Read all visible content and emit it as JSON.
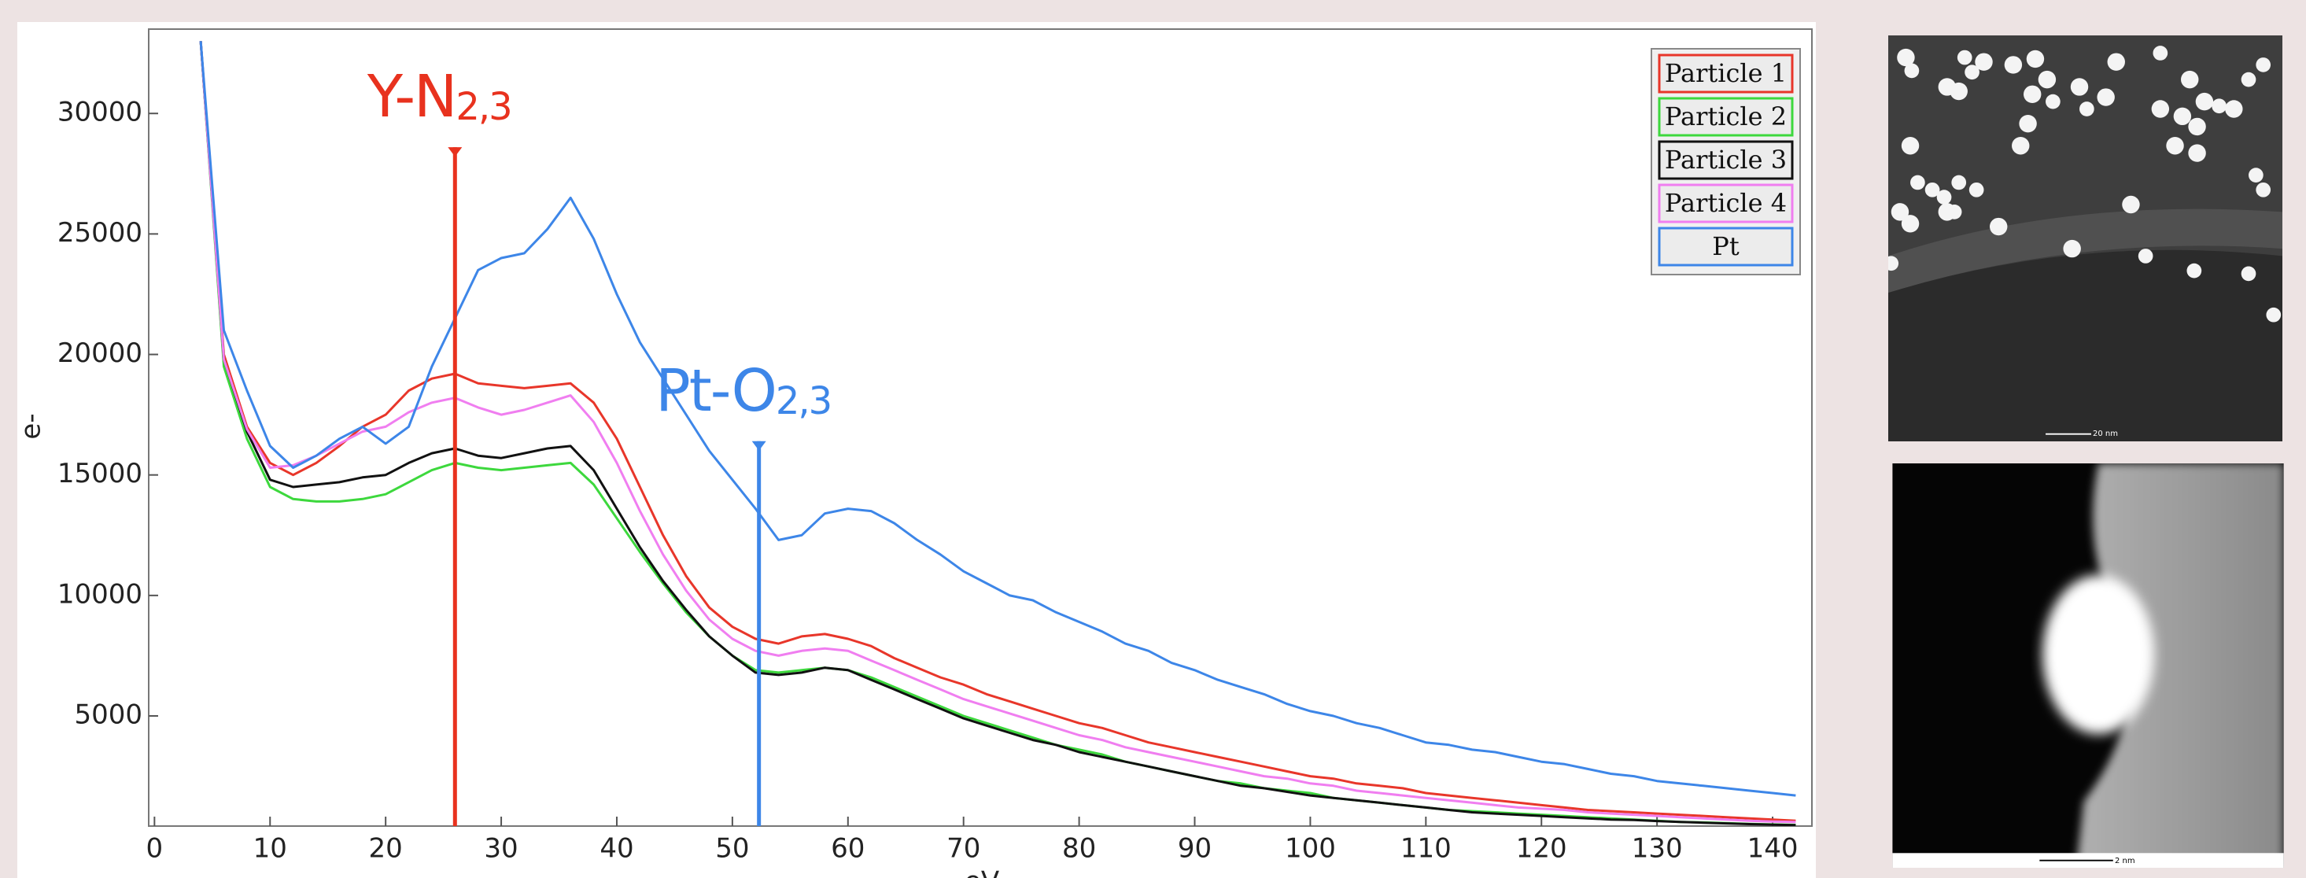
{
  "chart_data": {
    "type": "line",
    "x_label": "eV",
    "y_label": "e-",
    "xlim": [
      -0.5,
      143.4
    ],
    "ylim": [
      430,
      33500
    ],
    "xticks": [
      0,
      10,
      20,
      30,
      40,
      50,
      60,
      70,
      80,
      90,
      100,
      110,
      120,
      130,
      140
    ],
    "yticks": [
      5000,
      10000,
      15000,
      20000,
      25000,
      30000
    ],
    "legend": "upper right",
    "x": [
      4,
      6,
      8,
      10,
      12,
      14,
      16,
      18,
      20,
      22,
      24,
      26,
      28,
      30,
      32,
      34,
      36,
      38,
      40,
      42,
      44,
      46,
      48,
      50,
      52,
      54,
      56,
      58,
      60,
      62,
      64,
      66,
      68,
      70,
      72,
      74,
      76,
      78,
      80,
      82,
      84,
      86,
      88,
      90,
      92,
      94,
      96,
      98,
      100,
      102,
      104,
      106,
      108,
      110,
      112,
      114,
      116,
      118,
      120,
      122,
      124,
      126,
      128,
      130,
      132,
      134,
      136,
      138,
      140,
      142
    ],
    "series": [
      {
        "name": "Particle 1",
        "color": "#e8362a",
        "values": [
          33000,
          20000,
          17000,
          15500,
          15000,
          15500,
          16200,
          17000,
          17500,
          18500,
          19000,
          19200,
          18800,
          18700,
          18600,
          18700,
          18800,
          18000,
          16500,
          14500,
          12500,
          10800,
          9500,
          8700,
          8200,
          8000,
          8300,
          8400,
          8200,
          7900,
          7400,
          7000,
          6600,
          6300,
          5900,
          5600,
          5300,
          5000,
          4700,
          4500,
          4200,
          3900,
          3700,
          3500,
          3300,
          3100,
          2900,
          2700,
          2500,
          2400,
          2200,
          2100,
          2000,
          1800,
          1700,
          1600,
          1500,
          1400,
          1300,
          1200,
          1100,
          1050,
          1000,
          950,
          900,
          850,
          800,
          750,
          700,
          650
        ]
      },
      {
        "name": "Particle 2",
        "color": "#3dd83d",
        "values": [
          33000,
          19500,
          16500,
          14500,
          14000,
          13900,
          13900,
          14000,
          14200,
          14700,
          15200,
          15500,
          15300,
          15200,
          15300,
          15400,
          15500,
          14600,
          13200,
          11800,
          10500,
          9300,
          8300,
          7500,
          6900,
          6800,
          6900,
          7000,
          6900,
          6600,
          6200,
          5800,
          5400,
          5000,
          4700,
          4400,
          4100,
          3800,
          3600,
          3400,
          3100,
          2900,
          2700,
          2500,
          2300,
          2200,
          2000,
          1900,
          1800,
          1600,
          1500,
          1400,
          1300,
          1200,
          1100,
          1050,
          1000,
          950,
          900,
          850,
          800,
          750,
          700,
          650,
          600,
          580,
          550,
          520,
          500,
          480
        ]
      },
      {
        "name": "Particle 3",
        "color": "#111111",
        "values": [
          33000,
          19800,
          16800,
          14800,
          14500,
          14600,
          14700,
          14900,
          15000,
          15500,
          15900,
          16100,
          15800,
          15700,
          15900,
          16100,
          16200,
          15200,
          13600,
          12000,
          10600,
          9400,
          8300,
          7500,
          6800,
          6700,
          6800,
          7000,
          6900,
          6500,
          6100,
          5700,
          5300,
          4900,
          4600,
          4300,
          4000,
          3800,
          3500,
          3300,
          3100,
          2900,
          2700,
          2500,
          2300,
          2100,
          2000,
          1850,
          1700,
          1600,
          1500,
          1400,
          1300,
          1200,
          1100,
          1000,
          950,
          900,
          850,
          800,
          750,
          700,
          680,
          640,
          600,
          570,
          540,
          510,
          490,
          470
        ]
      },
      {
        "name": "Particle 4",
        "color": "#f07ef0",
        "values": [
          33000,
          19800,
          16900,
          15300,
          15400,
          15800,
          16300,
          16800,
          17000,
          17600,
          18000,
          18200,
          17800,
          17500,
          17700,
          18000,
          18300,
          17200,
          15500,
          13500,
          11700,
          10200,
          9000,
          8200,
          7700,
          7500,
          7700,
          7800,
          7700,
          7300,
          6900,
          6500,
          6100,
          5700,
          5400,
          5100,
          4800,
          4500,
          4200,
          4000,
          3700,
          3500,
          3300,
          3100,
          2900,
          2700,
          2500,
          2400,
          2200,
          2100,
          1900,
          1800,
          1700,
          1600,
          1500,
          1400,
          1300,
          1200,
          1150,
          1100,
          1000,
          950,
          900,
          850,
          800,
          750,
          700,
          650,
          620,
          600
        ]
      },
      {
        "name": "Pt",
        "color": "#3d86e8",
        "values": [
          33000,
          21000,
          18500,
          16200,
          15300,
          15800,
          16500,
          17000,
          16300,
          17000,
          19500,
          21500,
          23500,
          24000,
          24200,
          25200,
          26500,
          24800,
          22500,
          20500,
          19000,
          17500,
          16000,
          14800,
          13600,
          12300,
          12500,
          13400,
          13600,
          13500,
          13000,
          12300,
          11700,
          11000,
          10500,
          10000,
          9800,
          9300,
          8900,
          8500,
          8000,
          7700,
          7200,
          6900,
          6500,
          6200,
          5900,
          5500,
          5200,
          5000,
          4700,
          4500,
          4200,
          3900,
          3800,
          3600,
          3500,
          3300,
          3100,
          3000,
          2800,
          2600,
          2500,
          2300,
          2200,
          2100,
          2000,
          1900,
          1800,
          1700
        ]
      }
    ],
    "annotations": [
      {
        "text": "Y-N",
        "sub": "2,3",
        "x": 26,
        "y": 28600,
        "color": "#e8321e"
      },
      {
        "text": "Pt-O",
        "sub": "2,3",
        "x": 52.3,
        "y": 16400,
        "color": "#3d86e8"
      }
    ]
  },
  "images": [
    {
      "scale_label": "20 nm"
    },
    {
      "scale_label": "2 nm"
    }
  ]
}
